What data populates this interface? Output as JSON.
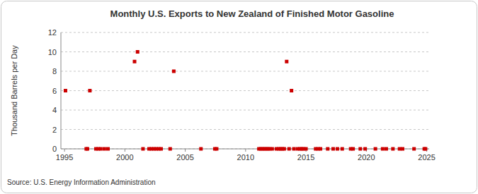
{
  "chart_data": {
    "type": "scatter",
    "title": "Monthly U.S. Exports to New Zealand of Finished Motor Gasoline",
    "y_label": "Thousand Barrels per Day",
    "source": "Source: U.S. Energy Information Administration",
    "x": [
      1995.08,
      1996.8,
      1996.9,
      1997.1,
      1997.6,
      1997.8,
      1998.0,
      1998.3,
      1998.6,
      2000.8,
      2001.05,
      2001.5,
      2002.0,
      2002.2,
      2002.4,
      2002.6,
      2002.8,
      2003.0,
      2003.75,
      2004.05,
      2006.3,
      2007.45,
      2007.6,
      2011.1,
      2011.25,
      2011.4,
      2011.55,
      2011.7,
      2011.85,
      2012.0,
      2012.2,
      2012.55,
      2012.75,
      2012.9,
      2013.05,
      2013.2,
      2013.4,
      2013.6,
      2013.8,
      2014.0,
      2014.3,
      2014.5,
      2014.65,
      2014.8,
      2015.0,
      2015.8,
      2016.0,
      2016.2,
      2016.8,
      2017.25,
      2017.6,
      2018.0,
      2018.7,
      2018.9,
      2019.5,
      2019.9,
      2020.75,
      2021.35,
      2021.65,
      2022.2,
      2022.75,
      2023.0,
      2023.95,
      2024.8,
      2024.9
    ],
    "values": [
      6,
      0,
      0,
      6,
      0,
      0,
      0,
      0,
      0,
      9,
      10,
      0,
      0,
      0,
      0,
      0,
      0,
      0,
      0,
      8,
      0,
      0,
      0,
      0,
      0,
      0,
      0,
      0,
      0,
      0,
      0,
      0,
      0,
      0,
      0,
      0,
      9,
      0,
      6,
      0,
      0,
      0,
      0,
      0,
      0,
      0,
      0,
      0,
      0,
      0,
      0,
      0,
      0,
      0,
      0,
      0,
      0,
      0,
      0,
      0,
      0,
      0,
      0,
      0,
      0
    ],
    "color": "#cc0000",
    "marker": "square",
    "xlim": [
      1994.7,
      2025.2
    ],
    "xticks": [
      1995,
      2000,
      2005,
      2010,
      2015,
      2020,
      2025
    ],
    "ylim": [
      0,
      12
    ],
    "yticks": [
      0,
      2,
      4,
      6,
      8,
      10,
      12
    ],
    "grid": true
  }
}
